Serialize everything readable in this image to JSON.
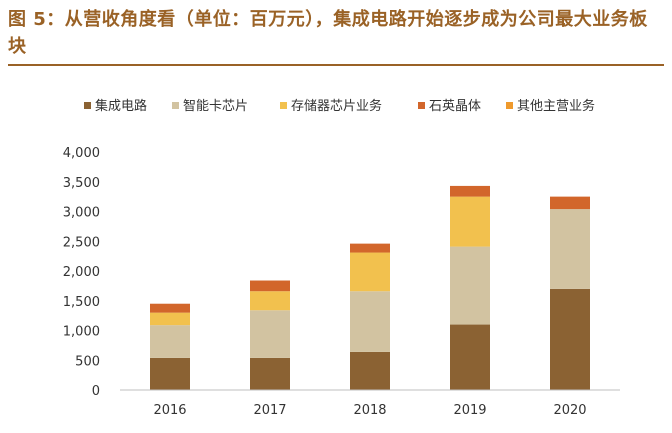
{
  "figure": {
    "title": "图 5：从营收角度看（单位：百万元），集成电路开始逐步成为公司最大业务板块"
  },
  "chart_data": {
    "type": "bar",
    "stacked": true,
    "categories": [
      "2016",
      "2017",
      "2018",
      "2019",
      "2020"
    ],
    "series": [
      {
        "name": "集成电路",
        "color": "#8b6233",
        "values": [
          540,
          540,
          640,
          1100,
          1700
        ]
      },
      {
        "name": "智能卡芯片",
        "color": "#d2c3a1",
        "values": [
          550,
          800,
          1020,
          1310,
          1340
        ]
      },
      {
        "name": "存储器芯片业务",
        "color": "#f2c14e",
        "values": [
          210,
          320,
          650,
          840,
          0
        ]
      },
      {
        "name": "石英晶体",
        "color": "#d2662b",
        "values": [
          150,
          180,
          150,
          180,
          210
        ]
      },
      {
        "name": "其他主营业务",
        "color": "#ef9a2d",
        "values": [
          0,
          0,
          0,
          0,
          0
        ]
      }
    ],
    "yticks": [
      "0",
      "500",
      "1,000",
      "1,500",
      "2,000",
      "2,500",
      "3,000",
      "3,500",
      "4,000"
    ],
    "ylim": [
      0,
      4000
    ],
    "grid": false,
    "legend_position": "top"
  }
}
